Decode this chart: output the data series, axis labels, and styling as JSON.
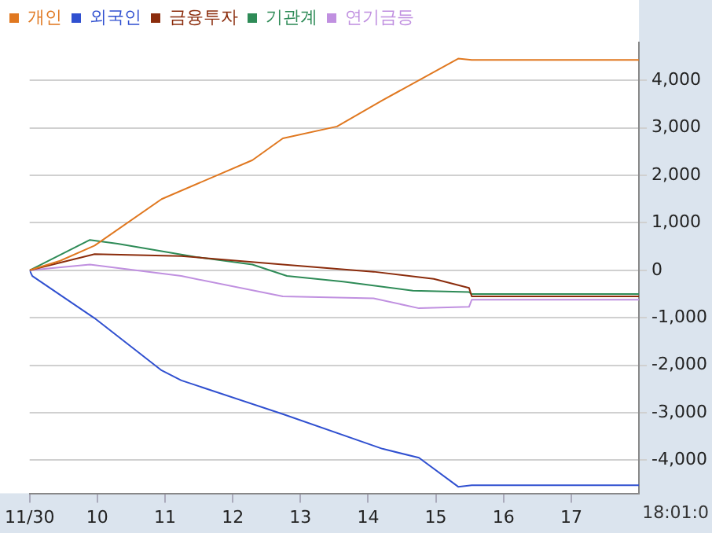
{
  "chart_data": {
    "type": "line",
    "xlim": [
      9,
      18
    ],
    "xticks": [
      {
        "value": 9,
        "label": "11/30"
      },
      10,
      11,
      12,
      13,
      14,
      15,
      16,
      17
    ],
    "ylim": [
      -4700,
      4800
    ],
    "yticks": [
      {
        "value": -4000,
        "label": "-4,000"
      },
      {
        "value": -3000,
        "label": "-3,000"
      },
      {
        "value": -2000,
        "label": "-2,000"
      },
      {
        "value": -1000,
        "label": "-1,000"
      },
      0,
      {
        "value": 1000,
        "label": "1,000"
      },
      {
        "value": 2000,
        "label": "2,000"
      },
      {
        "value": 3000,
        "label": "3,000"
      },
      {
        "value": 4000,
        "label": "4,000"
      }
    ],
    "grid": "y",
    "legend": "top left",
    "marker": "none",
    "line_style": "solid",
    "annotations": [
      "18:01:0"
    ],
    "series": [
      {
        "name": "개인",
        "color": "#e07820",
        "x": [
          9,
          9.45,
          9.96,
          10.95,
          12.29,
          12.74,
          13.54,
          14.21,
          15.33,
          15.53,
          18
        ],
        "values": [
          0,
          200,
          520,
          1500,
          2320,
          2780,
          3030,
          3580,
          4460,
          4430,
          4430
        ]
      },
      {
        "name": "외국인",
        "color": "#3050d0",
        "x": [
          9,
          9.04,
          9.96,
          10.95,
          11.24,
          12.74,
          14.21,
          14.75,
          15.33,
          15.53,
          18
        ],
        "values": [
          0,
          -120,
          -1010,
          -2110,
          -2320,
          -3030,
          -3760,
          -3950,
          -4560,
          -4530,
          -4530
        ]
      },
      {
        "name": "금융투자",
        "color": "#8b2c0c",
        "x": [
          9,
          9.96,
          11.24,
          12.74,
          14.08,
          14.97,
          15.49,
          15.53,
          18
        ],
        "values": [
          0,
          340,
          300,
          120,
          -30,
          -180,
          -370,
          -550,
          -550
        ]
      },
      {
        "name": "기관계",
        "color": "#2e8b57",
        "x": [
          9,
          9.89,
          10.3,
          11.46,
          12.29,
          12.8,
          13.63,
          14.66,
          15.49,
          15.53,
          18
        ],
        "values": [
          0,
          640,
          560,
          280,
          120,
          -120,
          -240,
          -430,
          -460,
          -500,
          -500
        ]
      },
      {
        "name": "연기금등",
        "color": "#c090e0",
        "x": [
          9,
          9.89,
          11.24,
          12.74,
          14.08,
          14.75,
          15.49,
          15.53,
          18
        ],
        "values": [
          0,
          120,
          -120,
          -550,
          -590,
          -800,
          -770,
          -620,
          -620
        ]
      }
    ]
  }
}
